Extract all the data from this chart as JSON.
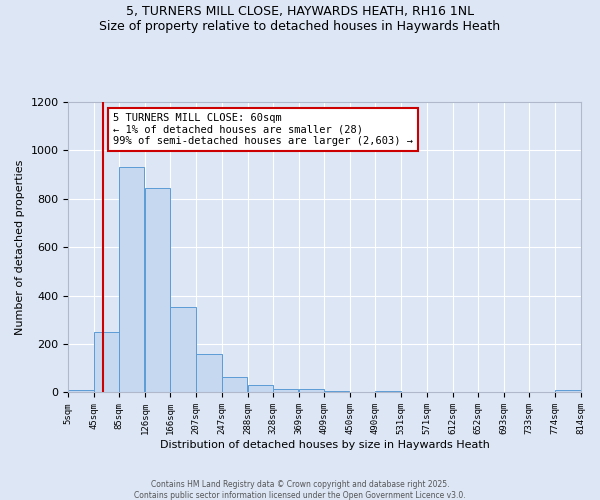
{
  "title_line1": "5, TURNERS MILL CLOSE, HAYWARDS HEATH, RH16 1NL",
  "title_line2": "Size of property relative to detached houses in Haywards Heath",
  "xlabel": "Distribution of detached houses by size in Haywards Heath",
  "ylabel": "Number of detached properties",
  "bar_color": "#c5d8f0",
  "bar_edge_color": "#5b9bd5",
  "bg_color": "#dce6f5",
  "grid_color": "#ffffff",
  "bins_left": [
    5,
    45,
    85,
    126,
    166,
    207,
    247,
    288,
    328,
    369,
    409,
    450,
    490,
    531,
    571,
    612,
    652,
    693,
    733,
    774
  ],
  "bin_width": 40,
  "bar_heights": [
    10,
    250,
    930,
    845,
    355,
    158,
    62,
    30,
    13,
    13,
    5,
    0,
    5,
    0,
    0,
    0,
    0,
    0,
    0,
    12
  ],
  "tick_labels": [
    "5sqm",
    "45sqm",
    "85sqm",
    "126sqm",
    "166sqm",
    "207sqm",
    "247sqm",
    "288sqm",
    "328sqm",
    "369sqm",
    "409sqm",
    "450sqm",
    "490sqm",
    "531sqm",
    "571sqm",
    "612sqm",
    "652sqm",
    "693sqm",
    "733sqm",
    "774sqm",
    "814sqm"
  ],
  "tick_positions": [
    5,
    45,
    85,
    126,
    166,
    207,
    247,
    288,
    328,
    369,
    409,
    450,
    490,
    531,
    571,
    612,
    652,
    693,
    733,
    774,
    814
  ],
  "property_size": 60,
  "red_line_color": "#cc0000",
  "annotation_text_line1": "5 TURNERS MILL CLOSE: 60sqm",
  "annotation_text_line2": "← 1% of detached houses are smaller (28)",
  "annotation_text_line3": "99% of semi-detached houses are larger (2,603) →",
  "annotation_box_color": "white",
  "annotation_box_edge": "#cc0000",
  "ylim": [
    0,
    1200
  ],
  "xlim": [
    5,
    814
  ],
  "footer_line1": "Contains HM Land Registry data © Crown copyright and database right 2025.",
  "footer_line2": "Contains public sector information licensed under the Open Government Licence v3.0."
}
